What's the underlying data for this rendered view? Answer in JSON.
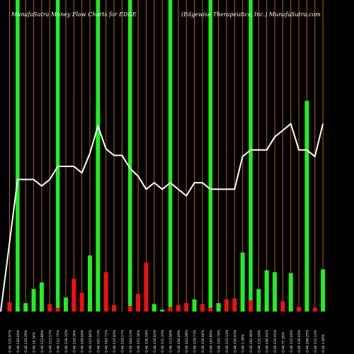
{
  "header": {
    "left": "MunafaSutra  Money Flow  Charts for EDGE",
    "right": "(Edgewise Therapeutics, Inc.) MunafaSutra.com"
  },
  "colors": {
    "background": "#000000",
    "grid_line": "#b8640a",
    "up": "#22ee22",
    "down": "#ee1111",
    "line": "#ffffff",
    "label": "#ffffff"
  },
  "chart_data": {
    "type": "bar",
    "grid": true,
    "legend": "none",
    "bar_ylim": [
      0,
      310
    ],
    "line_ylim": [
      0,
      240
    ],
    "categories": [
      "0.46 135.97%",
      "0.46 120.46%",
      "0.46 136.29%",
      "0.46 16.34%",
      "0.46 112.88%",
      "0.46 112.17%",
      "0.46 111.75%",
      "0.46 116.32%",
      "0.46 110.36%",
      "0.46 149.46%",
      "0.46 123.86%",
      "0.46 101.73%",
      "0.46 102.71%",
      "0.46 115.93%",
      "0.46 110.17%",
      "0.46 104.13%",
      "0.46 151.36%",
      "0.46 126.59%",
      "0.46 110.03%",
      "0.46 111.33%",
      "0.46 113.90%",
      "0.46 104.49%",
      "0.46 142.28%",
      "0.46 119.73%",
      "0.46 116.04%",
      "0.46 143.80%",
      "0.46 120.76%",
      "0.46 115.13%",
      "0.46 130.43%",
      "0.46 1.38%",
      "0.46 161.96%",
      "0.46 132.59%",
      "0.46 140.91%",
      "0.46 132.01%",
      "0.46 75.16%",
      "0.46 112.46%",
      "0.46 130.40%",
      "0.46 106.25%",
      "0.46 111.13%",
      "0.46 1.80%"
    ],
    "signed_volume": [
      10,
      5,
      9,
      24,
      31,
      8,
      4,
      15,
      35,
      20,
      60,
      218,
      42,
      7,
      0,
      6,
      19,
      52,
      8,
      2,
      5,
      7,
      9,
      13,
      8,
      4,
      9,
      13,
      14,
      63,
      12,
      24,
      44,
      42,
      11,
      41,
      5,
      225,
      4,
      45
    ],
    "direction": [
      "down",
      "up",
      "up",
      "up",
      "up",
      "down",
      "down",
      "up",
      "down",
      "down",
      "up",
      "up",
      "down",
      "down",
      "up",
      "down",
      "down",
      "down",
      "up",
      "up",
      "down",
      "down",
      "down",
      "up",
      "down",
      "down",
      "up",
      "down",
      "down",
      "up",
      "down",
      "up",
      "up",
      "up",
      "down",
      "up",
      "down",
      "up",
      "down",
      "up"
    ],
    "tall_bars": [
      1,
      6,
      11,
      15,
      20,
      25,
      30
    ],
    "line_values": [
      0,
      121,
      121,
      121,
      115,
      121,
      133,
      133,
      133,
      127,
      145,
      170,
      149,
      143,
      143,
      131,
      124,
      112,
      118,
      112,
      118,
      112,
      106,
      118,
      118,
      112,
      112,
      112,
      112,
      142,
      148,
      148,
      148,
      160,
      166,
      172,
      148,
      148,
      142,
      172
    ]
  }
}
